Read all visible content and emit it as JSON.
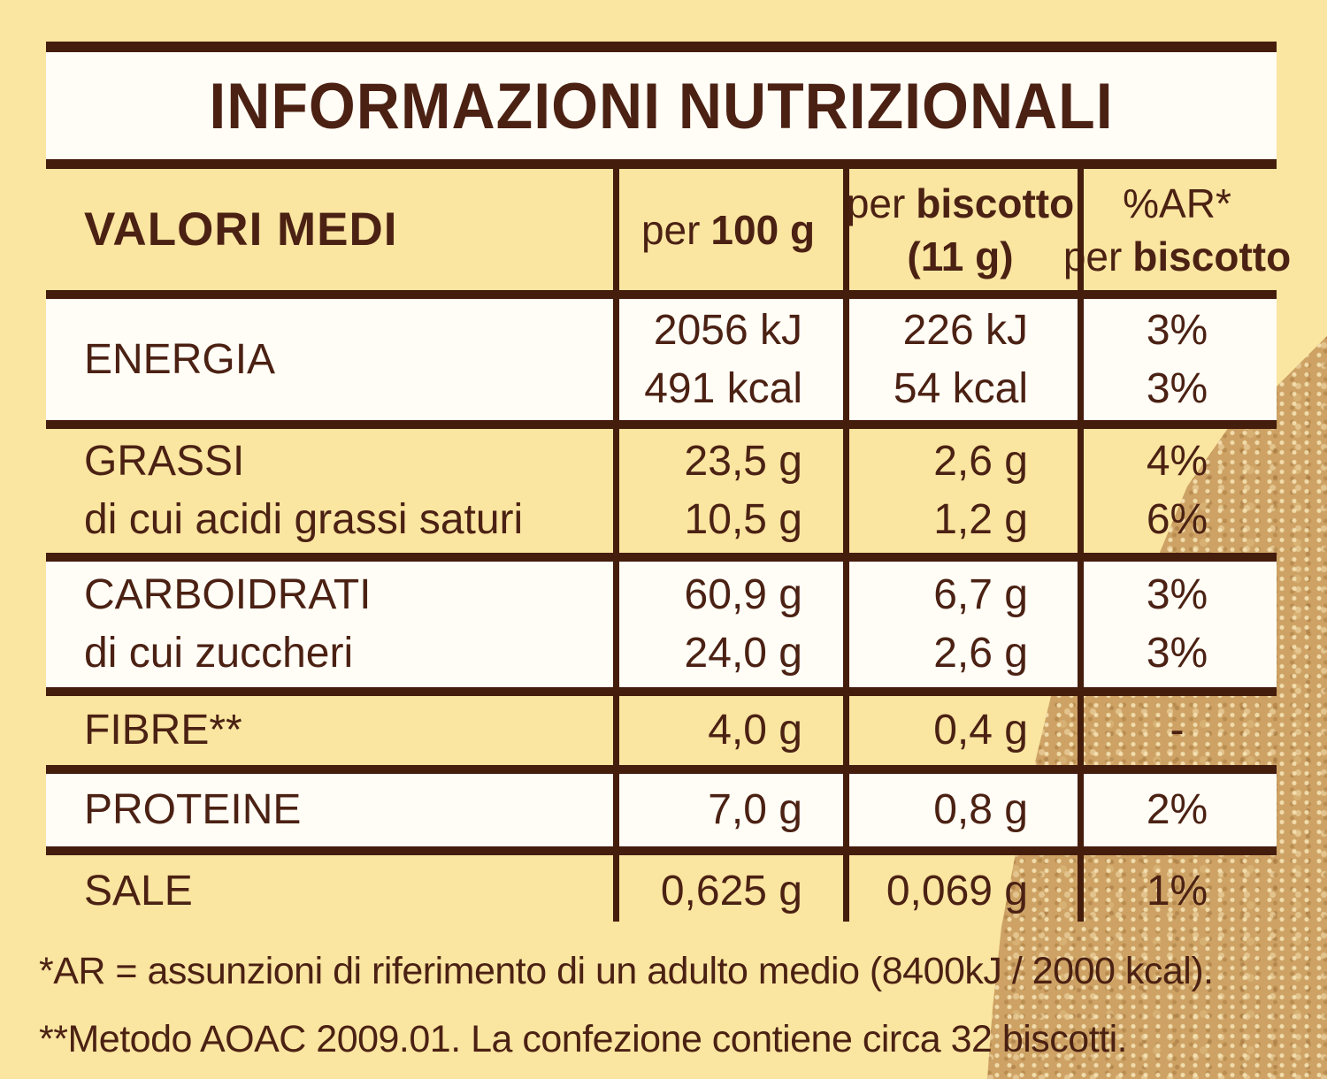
{
  "title": "INFORMAZIONI NUTRIZIONALI",
  "header": {
    "col0": "VALORI MEDI",
    "col1": {
      "pre": "per",
      "bold": "100 g"
    },
    "col2": {
      "pre": "per",
      "bold": "biscotto",
      "line2": "(11 g)"
    },
    "col3": {
      "line1": "%AR*",
      "line2_pre": "per",
      "line2_bold": "biscotto"
    }
  },
  "rows": [
    {
      "label1": "ENERGIA",
      "per100_1": "2056 kJ",
      "per100_2": "491 kcal",
      "perbisc_1": "226 kJ",
      "perbisc_2": "54 kcal",
      "ar_1": "3%",
      "ar_2": "3%"
    },
    {
      "label1": "GRASSI",
      "label2": "di cui acidi grassi saturi",
      "per100_1": "23,5 g",
      "per100_2": "10,5 g",
      "perbisc_1": "2,6 g",
      "perbisc_2": "1,2 g",
      "ar_1": "4%",
      "ar_2": "6%"
    },
    {
      "label1": "CARBOIDRATI",
      "label2": "di cui zuccheri",
      "per100_1": "60,9 g",
      "per100_2": "24,0 g",
      "perbisc_1": "6,7 g",
      "perbisc_2": "2,6 g",
      "ar_1": "3%",
      "ar_2": "3%"
    },
    {
      "label1": "FIBRE**",
      "per100_1": "4,0 g",
      "perbisc_1": "0,4 g",
      "ar_1": "-"
    },
    {
      "label1": "PROTEINE",
      "per100_1": "7,0 g",
      "perbisc_1": "0,8 g",
      "ar_1": "2%"
    },
    {
      "label1": "SALE",
      "per100_1": "0,625 g",
      "perbisc_1": "0,069 g",
      "ar_1": "1%"
    }
  ],
  "footnotes": {
    "line1": "*AR = assunzioni di riferimento di un adulto medio (8400kJ / 2000 kcal).",
    "line2": "**Metodo AOAC 2009.01. La confezione contiene circa 32 biscotti."
  },
  "colors": {
    "label_yellow": "#fae5a1",
    "row_white": "#fffdf6",
    "text_brown": "#4b2113",
    "line_brown": "#451d0d",
    "biscuit_tan": "#cda264"
  }
}
